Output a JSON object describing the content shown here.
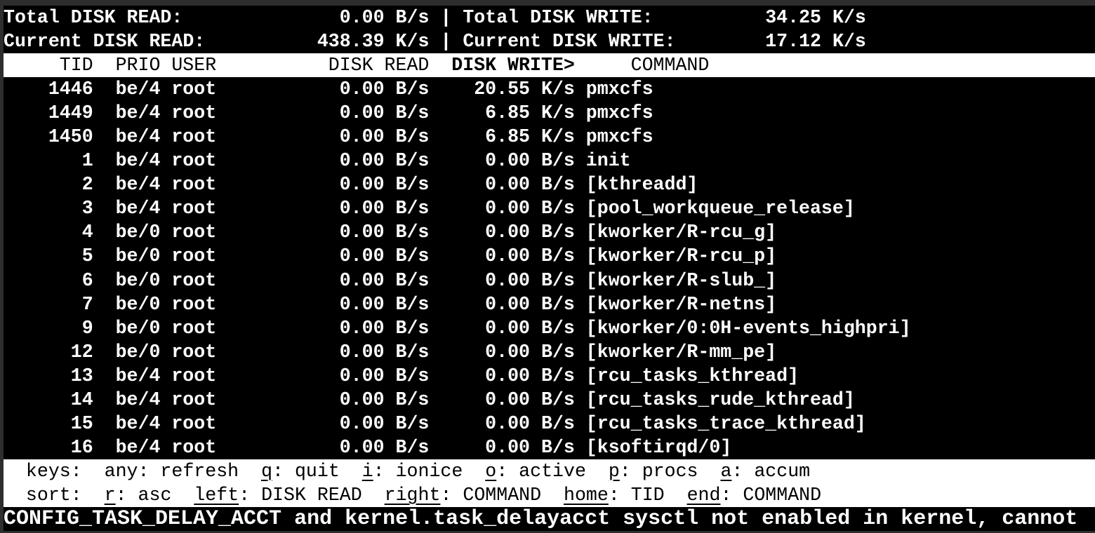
{
  "summary": {
    "separator": "|",
    "total_disk_read_label": "Total DISK READ:",
    "total_disk_read_value": "0.00 B/s",
    "total_disk_write_label": "Total DISK WRITE:",
    "total_disk_write_value": "34.25 K/s",
    "current_disk_read_label": "Current DISK READ:",
    "current_disk_read_value": "438.39 K/s",
    "current_disk_write_label": "Current DISK WRITE:",
    "current_disk_write_value": "17.12 K/s"
  },
  "table": {
    "headers": {
      "tid": "TID",
      "prio": "PRIO",
      "user": "USER",
      "disk_read": "DISK READ",
      "disk_write": "DISK WRITE>",
      "command": "COMMAND"
    },
    "sort": {
      "column": "DISK WRITE",
      "indicator": ">",
      "direction": "desc"
    },
    "rows": [
      {
        "tid": "1446",
        "prio": "be/4",
        "user": "root",
        "disk_read": "0.00 B/s",
        "disk_write": "20.55 K/s",
        "command": "pmxcfs"
      },
      {
        "tid": "1449",
        "prio": "be/4",
        "user": "root",
        "disk_read": "0.00 B/s",
        "disk_write": "6.85 K/s",
        "command": "pmxcfs"
      },
      {
        "tid": "1450",
        "prio": "be/4",
        "user": "root",
        "disk_read": "0.00 B/s",
        "disk_write": "6.85 K/s",
        "command": "pmxcfs"
      },
      {
        "tid": "1",
        "prio": "be/4",
        "user": "root",
        "disk_read": "0.00 B/s",
        "disk_write": "0.00 B/s",
        "command": "init"
      },
      {
        "tid": "2",
        "prio": "be/4",
        "user": "root",
        "disk_read": "0.00 B/s",
        "disk_write": "0.00 B/s",
        "command": "[kthreadd]"
      },
      {
        "tid": "3",
        "prio": "be/4",
        "user": "root",
        "disk_read": "0.00 B/s",
        "disk_write": "0.00 B/s",
        "command": "[pool_workqueue_release]"
      },
      {
        "tid": "4",
        "prio": "be/0",
        "user": "root",
        "disk_read": "0.00 B/s",
        "disk_write": "0.00 B/s",
        "command": "[kworker/R-rcu_g]"
      },
      {
        "tid": "5",
        "prio": "be/0",
        "user": "root",
        "disk_read": "0.00 B/s",
        "disk_write": "0.00 B/s",
        "command": "[kworker/R-rcu_p]"
      },
      {
        "tid": "6",
        "prio": "be/0",
        "user": "root",
        "disk_read": "0.00 B/s",
        "disk_write": "0.00 B/s",
        "command": "[kworker/R-slub_]"
      },
      {
        "tid": "7",
        "prio": "be/0",
        "user": "root",
        "disk_read": "0.00 B/s",
        "disk_write": "0.00 B/s",
        "command": "[kworker/R-netns]"
      },
      {
        "tid": "9",
        "prio": "be/0",
        "user": "root",
        "disk_read": "0.00 B/s",
        "disk_write": "0.00 B/s",
        "command": "[kworker/0:0H-events_highpri]"
      },
      {
        "tid": "12",
        "prio": "be/0",
        "user": "root",
        "disk_read": "0.00 B/s",
        "disk_write": "0.00 B/s",
        "command": "[kworker/R-mm_pe]"
      },
      {
        "tid": "13",
        "prio": "be/4",
        "user": "root",
        "disk_read": "0.00 B/s",
        "disk_write": "0.00 B/s",
        "command": "[rcu_tasks_kthread]"
      },
      {
        "tid": "14",
        "prio": "be/4",
        "user": "root",
        "disk_read": "0.00 B/s",
        "disk_write": "0.00 B/s",
        "command": "[rcu_tasks_rude_kthread]"
      },
      {
        "tid": "15",
        "prio": "be/4",
        "user": "root",
        "disk_read": "0.00 B/s",
        "disk_write": "0.00 B/s",
        "command": "[rcu_tasks_trace_kthread]"
      },
      {
        "tid": "16",
        "prio": "be/4",
        "user": "root",
        "disk_read": "0.00 B/s",
        "disk_write": "0.00 B/s",
        "command": "[ksoftirqd/0]"
      }
    ]
  },
  "help": {
    "keys_line": [
      {
        "t": "  keys:  any: refresh  "
      },
      {
        "t": "q",
        "u": true
      },
      {
        "t": ": quit  "
      },
      {
        "t": "i",
        "u": true
      },
      {
        "t": ": ionice  "
      },
      {
        "t": "o",
        "u": true
      },
      {
        "t": ": active  "
      },
      {
        "t": "p",
        "u": true
      },
      {
        "t": ": procs  "
      },
      {
        "t": "a",
        "u": true
      },
      {
        "t": ": accum"
      }
    ],
    "sort_line": [
      {
        "t": "  sort:  "
      },
      {
        "t": "r",
        "u": true
      },
      {
        "t": ": asc  "
      },
      {
        "t": "left",
        "u": true
      },
      {
        "t": ": DISK READ  "
      },
      {
        "t": "right",
        "u": true
      },
      {
        "t": ": COMMAND  "
      },
      {
        "t": "home",
        "u": true
      },
      {
        "t": ": TID  "
      },
      {
        "t": "end",
        "u": true
      },
      {
        "t": ": COMMAND"
      }
    ]
  },
  "status_bar": {
    "message": "CONFIG_TASK_DELAY_ACCT and kernel.task_delayacct sysctl not enabled in kernel, cannot"
  },
  "colors": {
    "background": "#000000",
    "foreground": "#ffffff",
    "band_background": "#ffffff",
    "band_foreground": "#000000",
    "frame": "#2e2e2e"
  }
}
